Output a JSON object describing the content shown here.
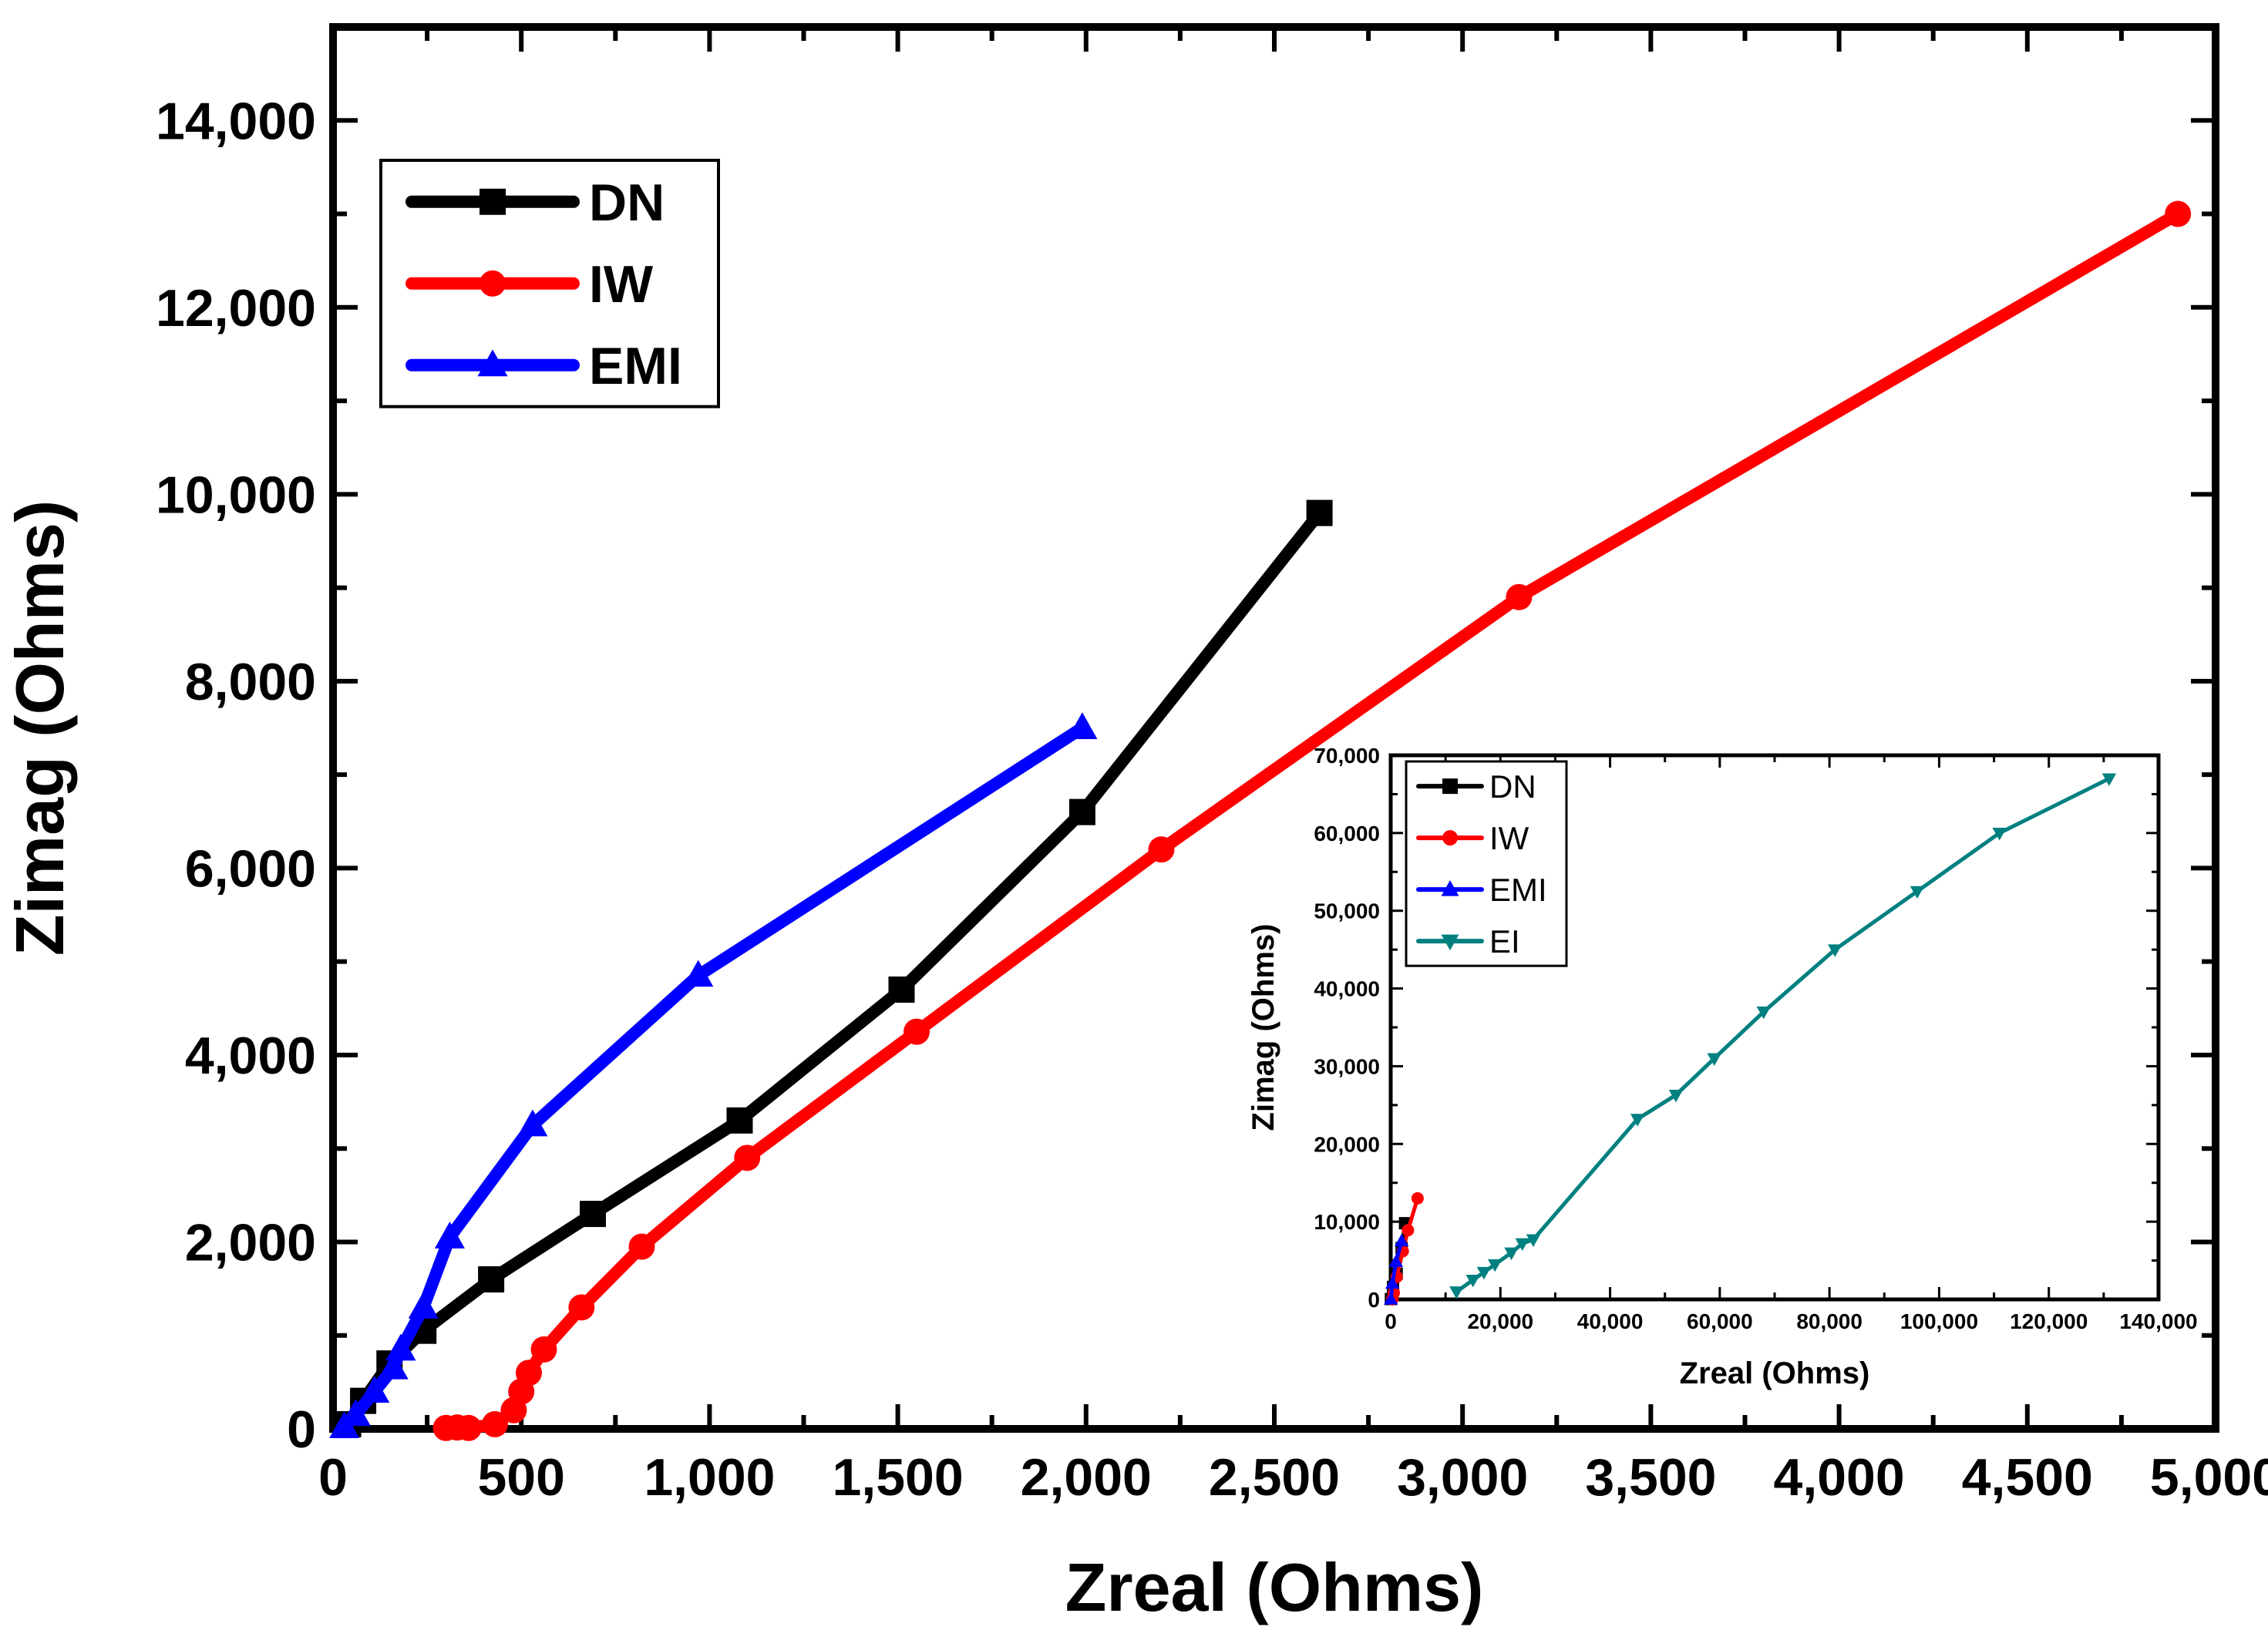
{
  "chart_data": [
    {
      "type": "line",
      "role": "main",
      "xlabel": "Zreal (Ohms)",
      "ylabel": "Zimag (Ohms)",
      "xlim": [
        0,
        5000
      ],
      "ylim": [
        0,
        15000
      ],
      "xticks": [
        0,
        500,
        1000,
        1500,
        2000,
        2500,
        3000,
        3500,
        4000,
        4500,
        5000
      ],
      "xtick_labels": [
        "0",
        "500",
        "1,000",
        "1,500",
        "2,000",
        "2,500",
        "3,000",
        "3,500",
        "4,000",
        "4,500",
        "5,000"
      ],
      "yticks": [
        0,
        2000,
        4000,
        6000,
        8000,
        10000,
        12000,
        14000
      ],
      "ytick_labels": [
        "0",
        "2,000",
        "4,000",
        "6,000",
        "8,000",
        "10,000",
        "12,000",
        "14,000"
      ],
      "legend_position": "top-left",
      "series": [
        {
          "name": "DN",
          "color": "#000000",
          "marker": "square",
          "points": [
            [
              40,
              50
            ],
            [
              80,
              300
            ],
            [
              150,
              700
            ],
            [
              240,
              1050
            ],
            [
              420,
              1600
            ],
            [
              690,
              2300
            ],
            [
              1080,
              3300
            ],
            [
              1510,
              4700
            ],
            [
              1990,
              6600
            ],
            [
              2620,
              9800
            ]
          ]
        },
        {
          "name": "IW",
          "color": "#ff0000",
          "marker": "circle",
          "points": [
            [
              300,
              10
            ],
            [
              330,
              15
            ],
            [
              360,
              10
            ],
            [
              430,
              50
            ],
            [
              480,
              200
            ],
            [
              500,
              400
            ],
            [
              520,
              600
            ],
            [
              560,
              850
            ],
            [
              660,
              1300
            ],
            [
              820,
              1950
            ],
            [
              1100,
              2900
            ],
            [
              1550,
              4250
            ],
            [
              2200,
              6200
            ],
            [
              3150,
              8900
            ],
            [
              4900,
              13000
            ]
          ]
        },
        {
          "name": "EMI",
          "color": "#0000ff",
          "marker": "triangle-up",
          "points": [
            [
              30,
              20
            ],
            [
              60,
              150
            ],
            [
              110,
              400
            ],
            [
              160,
              650
            ],
            [
              180,
              850
            ],
            [
              240,
              1300
            ],
            [
              310,
              2050
            ],
            [
              530,
              3250
            ],
            [
              970,
              4850
            ],
            [
              1990,
              7500
            ]
          ]
        }
      ]
    },
    {
      "type": "line",
      "role": "inset",
      "xlabel": "Zreal (Ohms)",
      "ylabel": "Zimag (Ohms)",
      "xlim": [
        0,
        140000
      ],
      "ylim": [
        0,
        70000
      ],
      "xticks": [
        0,
        20000,
        40000,
        60000,
        80000,
        100000,
        120000,
        140000
      ],
      "xtick_labels": [
        "0",
        "20,000",
        "40,000",
        "60,000",
        "80,000",
        "100,000",
        "120,000",
        "140,000"
      ],
      "yticks": [
        0,
        10000,
        20000,
        30000,
        40000,
        50000,
        60000,
        70000
      ],
      "ytick_labels": [
        "0",
        "10,000",
        "20,000",
        "30,000",
        "40,000",
        "50,000",
        "60,000",
        "70,000"
      ],
      "legend_position": "top-left",
      "series": [
        {
          "name": "DN",
          "color": "#000000",
          "marker": "square",
          "points": [
            [
              40,
              50
            ],
            [
              420,
              1600
            ],
            [
              1080,
              3300
            ],
            [
              1990,
              6600
            ],
            [
              2620,
              9800
            ]
          ]
        },
        {
          "name": "IW",
          "color": "#ff0000",
          "marker": "circle",
          "points": [
            [
              300,
              10
            ],
            [
              560,
              850
            ],
            [
              1100,
              2900
            ],
            [
              2200,
              6200
            ],
            [
              3150,
              8900
            ],
            [
              4900,
              13000
            ]
          ]
        },
        {
          "name": "EMI",
          "color": "#0000ff",
          "marker": "triangle-up",
          "points": [
            [
              30,
              20
            ],
            [
              310,
              2050
            ],
            [
              970,
              4850
            ],
            [
              1990,
              7500
            ]
          ]
        },
        {
          "name": "EI",
          "color": "#008080",
          "marker": "triangle-down",
          "points": [
            [
              12000,
              1000
            ],
            [
              15000,
              2500
            ],
            [
              17000,
              3500
            ],
            [
              19000,
              4500
            ],
            [
              22000,
              6000
            ],
            [
              24000,
              7200
            ],
            [
              26000,
              7700
            ],
            [
              45000,
              23200
            ],
            [
              52000,
              26300
            ],
            [
              59000,
              31000
            ],
            [
              68000,
              37000
            ],
            [
              81000,
              45000
            ],
            [
              96000,
              52500
            ],
            [
              111000,
              60000
            ],
            [
              131000,
              67000
            ]
          ]
        }
      ]
    }
  ]
}
